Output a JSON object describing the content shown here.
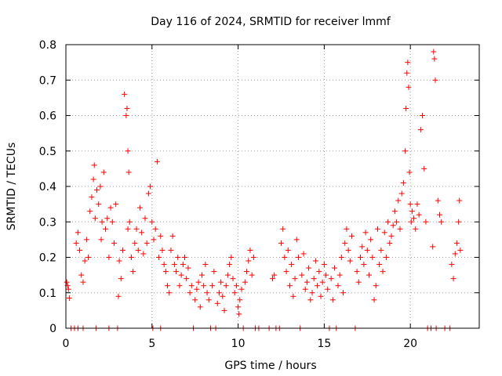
{
  "chart_data": {
    "type": "scatter",
    "title": "Day 116 of 2024, SRMTID for receiver lmmf",
    "xlabel": "GPS time / hours",
    "ylabel": "SRMTID / TECUs",
    "xlim": [
      0,
      24
    ],
    "ylim": [
      0,
      0.8
    ],
    "xticks": [
      0,
      5,
      10,
      15,
      20
    ],
    "yticks": [
      0,
      0.1,
      0.2,
      0.3,
      0.4,
      0.5,
      0.6,
      0.7,
      0.8
    ],
    "xtick_labels": [
      "0",
      "5",
      "10",
      "15",
      "20"
    ],
    "ytick_labels": [
      "0",
      "0.1",
      "0.2",
      "0.3",
      "0.4",
      "0.5",
      "0.6",
      "0.7",
      "0.8"
    ],
    "grid": true,
    "marker": "+",
    "marker_color": "#ff0000",
    "series": [
      {
        "name": "SRMTID",
        "points": [
          [
            0.05,
            0.13
          ],
          [
            0.1,
            0.12
          ],
          [
            0.15,
            0.11
          ],
          [
            0.2,
            0.085
          ],
          [
            0.3,
            0.0
          ],
          [
            0.5,
            0.0
          ],
          [
            0.7,
            0.0
          ],
          [
            0.6,
            0.24
          ],
          [
            0.7,
            0.27
          ],
          [
            0.8,
            0.22
          ],
          [
            0.9,
            0.15
          ],
          [
            1.0,
            0.13
          ],
          [
            1.0,
            0.0
          ],
          [
            1.1,
            0.19
          ],
          [
            1.2,
            0.25
          ],
          [
            1.3,
            0.2
          ],
          [
            1.4,
            0.33
          ],
          [
            1.5,
            0.37
          ],
          [
            1.6,
            0.42
          ],
          [
            1.65,
            0.46
          ],
          [
            1.7,
            0.31
          ],
          [
            1.75,
            0.0
          ],
          [
            1.8,
            0.39
          ],
          [
            1.9,
            0.35
          ],
          [
            2.0,
            0.4
          ],
          [
            2.05,
            0.25
          ],
          [
            2.1,
            0.3
          ],
          [
            2.2,
            0.44
          ],
          [
            2.3,
            0.28
          ],
          [
            2.4,
            0.31
          ],
          [
            2.5,
            0.2
          ],
          [
            2.5,
            0.0
          ],
          [
            2.6,
            0.34
          ],
          [
            2.7,
            0.3
          ],
          [
            2.8,
            0.24
          ],
          [
            2.9,
            0.35
          ],
          [
            3.0,
            0.0
          ],
          [
            3.05,
            0.09
          ],
          [
            3.1,
            0.19
          ],
          [
            3.2,
            0.14
          ],
          [
            3.3,
            0.22
          ],
          [
            3.4,
            0.66
          ],
          [
            3.5,
            0.6
          ],
          [
            3.55,
            0.62
          ],
          [
            3.6,
            0.5
          ],
          [
            3.6,
            0.28
          ],
          [
            3.65,
            0.44
          ],
          [
            3.7,
            0.3
          ],
          [
            3.8,
            0.2
          ],
          [
            3.9,
            0.16
          ],
          [
            4.0,
            0.24
          ],
          [
            4.1,
            0.28
          ],
          [
            4.2,
            0.22
          ],
          [
            4.3,
            0.34
          ],
          [
            4.4,
            0.27
          ],
          [
            4.5,
            0.21
          ],
          [
            4.6,
            0.31
          ],
          [
            4.7,
            0.24
          ],
          [
            4.8,
            0.38
          ],
          [
            4.9,
            0.4
          ],
          [
            5.0,
            0.3
          ],
          [
            5.05,
            0.0
          ],
          [
            5.1,
            0.25
          ],
          [
            5.2,
            0.28
          ],
          [
            5.3,
            0.47
          ],
          [
            5.4,
            0.2
          ],
          [
            5.5,
            0.0
          ],
          [
            5.5,
            0.26
          ],
          [
            5.6,
            0.22
          ],
          [
            5.7,
            0.18
          ],
          [
            5.8,
            0.16
          ],
          [
            5.9,
            0.12
          ],
          [
            6.0,
            0.1
          ],
          [
            6.1,
            0.22
          ],
          [
            6.2,
            0.26
          ],
          [
            6.3,
            0.18
          ],
          [
            6.4,
            0.16
          ],
          [
            6.5,
            0.2
          ],
          [
            6.6,
            0.12
          ],
          [
            6.7,
            0.15
          ],
          [
            6.8,
            0.18
          ],
          [
            6.9,
            0.2
          ],
          [
            7.0,
            0.14
          ],
          [
            7.1,
            0.17
          ],
          [
            7.2,
            0.1
          ],
          [
            7.3,
            0.12
          ],
          [
            7.4,
            0.0
          ],
          [
            7.5,
            0.08
          ],
          [
            7.6,
            0.11
          ],
          [
            7.7,
            0.13
          ],
          [
            7.8,
            0.06
          ],
          [
            7.9,
            0.15
          ],
          [
            8.0,
            0.12
          ],
          [
            8.1,
            0.18
          ],
          [
            8.2,
            0.1
          ],
          [
            8.3,
            0.08
          ],
          [
            8.4,
            0.0
          ],
          [
            8.5,
            0.12
          ],
          [
            8.6,
            0.16
          ],
          [
            8.7,
            0.0
          ],
          [
            8.8,
            0.07
          ],
          [
            8.9,
            0.1
          ],
          [
            9.0,
            0.13
          ],
          [
            9.1,
            0.09
          ],
          [
            9.2,
            0.05
          ],
          [
            9.3,
            0.12
          ],
          [
            9.4,
            0.15
          ],
          [
            9.5,
            0.18
          ],
          [
            9.6,
            0.2
          ],
          [
            9.7,
            0.14
          ],
          [
            9.8,
            0.1
          ],
          [
            9.9,
            0.12
          ],
          [
            10.0,
            0.06
          ],
          [
            10.05,
            0.04
          ],
          [
            10.1,
            0.08
          ],
          [
            10.2,
            0.11
          ],
          [
            10.3,
            0.0
          ],
          [
            10.4,
            0.13
          ],
          [
            10.5,
            0.16
          ],
          [
            10.6,
            0.19
          ],
          [
            10.7,
            0.22
          ],
          [
            10.8,
            0.15
          ],
          [
            10.9,
            0.2
          ],
          [
            11.0,
            0.0
          ],
          [
            11.2,
            0.0
          ],
          [
            11.8,
            0.0
          ],
          [
            12.0,
            0.14
          ],
          [
            12.1,
            0.15
          ],
          [
            12.2,
            0.0
          ],
          [
            12.4,
            0.0
          ],
          [
            12.5,
            0.24
          ],
          [
            12.6,
            0.28
          ],
          [
            12.7,
            0.2
          ],
          [
            12.8,
            0.16
          ],
          [
            12.9,
            0.22
          ],
          [
            13.0,
            0.12
          ],
          [
            13.1,
            0.18
          ],
          [
            13.2,
            0.09
          ],
          [
            13.3,
            0.14
          ],
          [
            13.4,
            0.25
          ],
          [
            13.5,
            0.2
          ],
          [
            13.6,
            0.0
          ],
          [
            13.7,
            0.15
          ],
          [
            13.8,
            0.21
          ],
          [
            13.9,
            0.11
          ],
          [
            14.0,
            0.13
          ],
          [
            14.1,
            0.17
          ],
          [
            14.2,
            0.08
          ],
          [
            14.3,
            0.1
          ],
          [
            14.4,
            0.14
          ],
          [
            14.5,
            0.19
          ],
          [
            14.6,
            0.12
          ],
          [
            14.7,
            0.16
          ],
          [
            14.8,
            0.09
          ],
          [
            14.9,
            0.13
          ],
          [
            15.0,
            0.18
          ],
          [
            15.1,
            0.15
          ],
          [
            15.2,
            0.11
          ],
          [
            15.3,
            0.0
          ],
          [
            15.4,
            0.14
          ],
          [
            15.5,
            0.08
          ],
          [
            15.6,
            0.17
          ],
          [
            15.7,
            0.0
          ],
          [
            15.8,
            0.12
          ],
          [
            15.9,
            0.15
          ],
          [
            16.0,
            0.2
          ],
          [
            16.1,
            0.1
          ],
          [
            16.2,
            0.24
          ],
          [
            16.3,
            0.28
          ],
          [
            16.4,
            0.22
          ],
          [
            16.5,
            0.19
          ],
          [
            16.6,
            0.26
          ],
          [
            16.8,
            0.0
          ],
          [
            16.9,
            0.16
          ],
          [
            17.0,
            0.13
          ],
          [
            17.1,
            0.2
          ],
          [
            17.2,
            0.23
          ],
          [
            17.3,
            0.18
          ],
          [
            17.4,
            0.27
          ],
          [
            17.5,
            0.22
          ],
          [
            17.6,
            0.15
          ],
          [
            17.7,
            0.25
          ],
          [
            17.8,
            0.2
          ],
          [
            17.9,
            0.08
          ],
          [
            18.0,
            0.12
          ],
          [
            18.1,
            0.28
          ],
          [
            18.2,
            0.18
          ],
          [
            18.3,
            0.22
          ],
          [
            18.4,
            0.16
          ],
          [
            18.5,
            0.27
          ],
          [
            18.6,
            0.2
          ],
          [
            18.7,
            0.3
          ],
          [
            18.8,
            0.24
          ],
          [
            18.9,
            0.26
          ],
          [
            19.0,
            0.29
          ],
          [
            19.1,
            0.33
          ],
          [
            19.2,
            0.3
          ],
          [
            19.3,
            0.36
          ],
          [
            19.4,
            0.28
          ],
          [
            19.5,
            0.38
          ],
          [
            19.6,
            0.41
          ],
          [
            19.7,
            0.5
          ],
          [
            19.75,
            0.62
          ],
          [
            19.8,
            0.72
          ],
          [
            19.85,
            0.75
          ],
          [
            19.9,
            0.68
          ],
          [
            19.95,
            0.44
          ],
          [
            20.0,
            0.35
          ],
          [
            20.05,
            0.3
          ],
          [
            20.1,
            0.33
          ],
          [
            20.2,
            0.31
          ],
          [
            20.3,
            0.28
          ],
          [
            20.4,
            0.35
          ],
          [
            20.5,
            0.32
          ],
          [
            20.6,
            0.56
          ],
          [
            20.7,
            0.6
          ],
          [
            20.8,
            0.45
          ],
          [
            20.9,
            0.3
          ],
          [
            21.0,
            0.0
          ],
          [
            21.2,
            0.0
          ],
          [
            21.3,
            0.23
          ],
          [
            21.35,
            0.78
          ],
          [
            21.4,
            0.76
          ],
          [
            21.45,
            0.7
          ],
          [
            21.5,
            0.0
          ],
          [
            21.6,
            0.36
          ],
          [
            21.7,
            0.32
          ],
          [
            21.8,
            0.3
          ],
          [
            22.0,
            0.0
          ],
          [
            22.3,
            0.0
          ],
          [
            22.4,
            0.18
          ],
          [
            22.5,
            0.14
          ],
          [
            22.6,
            0.21
          ],
          [
            22.7,
            0.24
          ],
          [
            22.8,
            0.3
          ],
          [
            22.85,
            0.36
          ],
          [
            22.9,
            0.22
          ]
        ]
      }
    ]
  }
}
